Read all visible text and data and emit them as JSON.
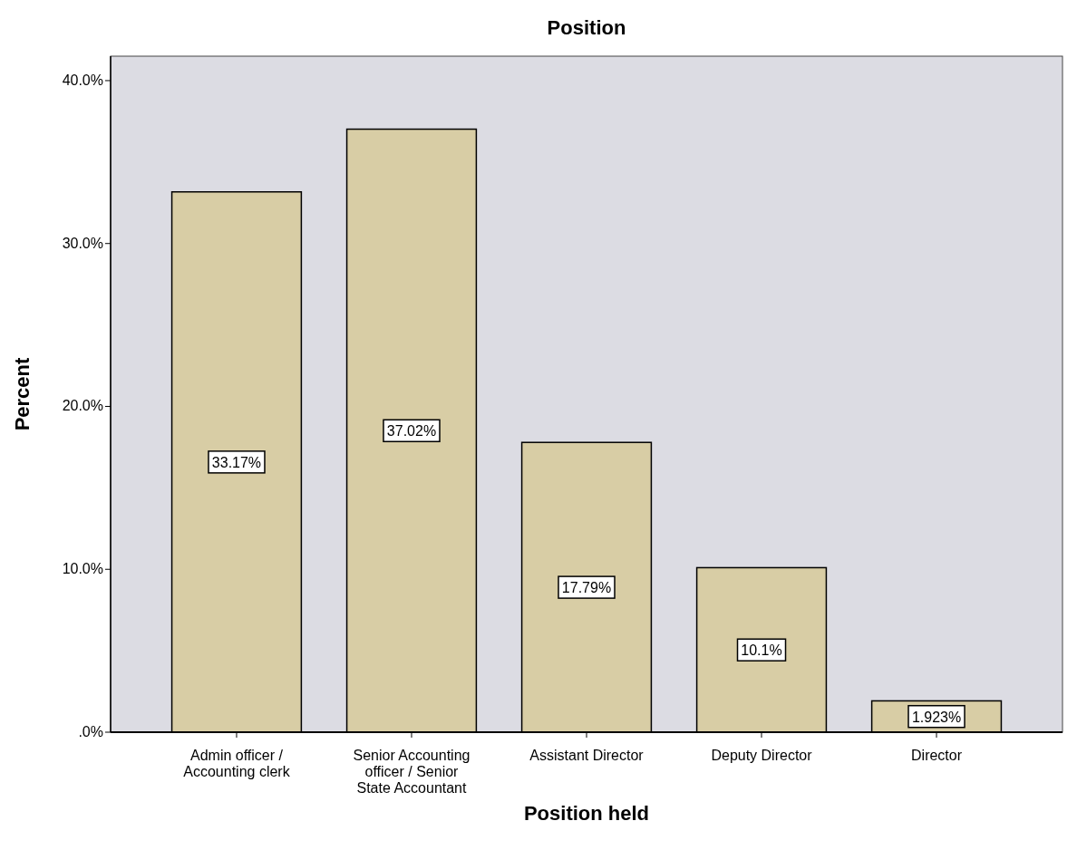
{
  "chart_data": {
    "type": "bar",
    "title": "Position",
    "xlabel": "Position held",
    "ylabel": "Percent",
    "categories": [
      "Admin officer / Accounting clerk",
      "Senior Accounting officer / Senior State Accountant",
      "Assistant Director",
      "Deputy Director",
      "Director"
    ],
    "values": [
      33.17,
      37.02,
      17.79,
      10.1,
      1.923
    ],
    "value_labels": [
      "33.17%",
      "37.02%",
      "17.79%",
      "10.1%",
      "1.923%"
    ],
    "color": "#d8cda5",
    "ylim": [
      0,
      41.5
    ],
    "yticks": [
      {
        "value": 0,
        "label": ".0%"
      },
      {
        "value": 10,
        "label": "10.0%"
      },
      {
        "value": 20,
        "label": "20.0%"
      },
      {
        "value": 30,
        "label": "30.0%"
      },
      {
        "value": 40,
        "label": "40.0%"
      }
    ],
    "grid": false
  }
}
